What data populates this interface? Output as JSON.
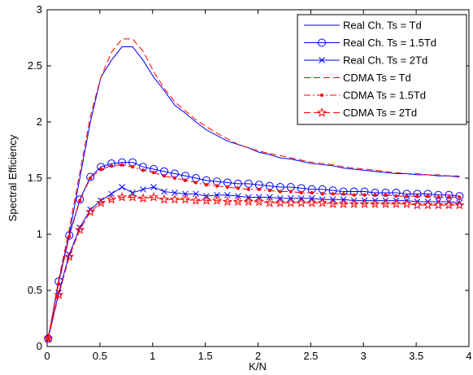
{
  "chart_data": {
    "type": "line",
    "title": "",
    "xlabel": "K/N",
    "ylabel": "Spectral Efficiency",
    "xlim": [
      0,
      4
    ],
    "ylim": [
      0,
      3
    ],
    "xticks": [
      0,
      0.5,
      1,
      1.5,
      2,
      2.5,
      3,
      3.5,
      4
    ],
    "yticks": [
      0,
      0.5,
      1,
      1.5,
      2,
      2.5,
      3
    ],
    "xtick_labels": [
      "0",
      "0.5",
      "1",
      "1.5",
      "2",
      "2.5",
      "3",
      "3.5",
      "4"
    ],
    "ytick_labels": [
      "0",
      "0.5",
      "1",
      "1.5",
      "2",
      "2.5",
      "3"
    ],
    "grid": false,
    "legend_position": "top-right",
    "x": [
      0.01,
      0.11,
      0.21,
      0.31,
      0.41,
      0.51,
      0.61,
      0.71,
      0.81,
      0.91,
      1.01,
      1.11,
      1.21,
      1.31,
      1.41,
      1.51,
      1.61,
      1.71,
      1.81,
      1.91,
      2.01,
      2.11,
      2.21,
      2.31,
      2.41,
      2.51,
      2.61,
      2.71,
      2.81,
      2.91,
      3.01,
      3.11,
      3.21,
      3.31,
      3.41,
      3.51,
      3.61,
      3.71,
      3.81,
      3.91
    ],
    "series": [
      {
        "name": "Real Ch. Ts = Td",
        "color": "#0000ff",
        "dash": "solid",
        "marker": "none",
        "values": [
          0.07,
          0.58,
          1.0,
          1.5,
          2.0,
          2.4,
          2.55,
          2.67,
          2.67,
          2.55,
          2.4,
          2.28,
          2.15,
          2.08,
          2.0,
          1.93,
          1.88,
          1.83,
          1.8,
          1.77,
          1.73,
          1.71,
          1.68,
          1.67,
          1.65,
          1.63,
          1.62,
          1.61,
          1.59,
          1.58,
          1.57,
          1.56,
          1.55,
          1.54,
          1.54,
          1.53,
          1.53,
          1.52,
          1.52,
          1.51
        ]
      },
      {
        "name": "Real Ch. Ts = 1.5Td",
        "color": "#0000ff",
        "dash": "solid",
        "marker": "circle",
        "values": [
          0.07,
          0.58,
          0.99,
          1.31,
          1.51,
          1.6,
          1.63,
          1.64,
          1.64,
          1.6,
          1.58,
          1.56,
          1.54,
          1.52,
          1.5,
          1.48,
          1.47,
          1.46,
          1.45,
          1.45,
          1.44,
          1.43,
          1.42,
          1.42,
          1.41,
          1.4,
          1.4,
          1.39,
          1.38,
          1.38,
          1.38,
          1.37,
          1.37,
          1.37,
          1.36,
          1.36,
          1.36,
          1.35,
          1.35,
          1.34
        ]
      },
      {
        "name": "Real Ch. Ts = 2Td",
        "color": "#0000ff",
        "dash": "solid",
        "marker": "x",
        "values": [
          0.07,
          0.48,
          0.82,
          1.06,
          1.22,
          1.3,
          1.36,
          1.42,
          1.37,
          1.4,
          1.42,
          1.38,
          1.37,
          1.36,
          1.36,
          1.34,
          1.35,
          1.35,
          1.34,
          1.33,
          1.33,
          1.33,
          1.32,
          1.32,
          1.32,
          1.32,
          1.31,
          1.31,
          1.31,
          1.3,
          1.3,
          1.3,
          1.3,
          1.3,
          1.3,
          1.29,
          1.29,
          1.29,
          1.29,
          1.28
        ]
      },
      {
        "name": "CDMA Ts = Td",
        "color": "#ff0000",
        "dash": "dashed",
        "marker": "none",
        "values": [
          0.07,
          0.6,
          1.05,
          1.55,
          2.05,
          2.4,
          2.62,
          2.74,
          2.74,
          2.63,
          2.45,
          2.3,
          2.18,
          2.1,
          2.02,
          1.96,
          1.9,
          1.85,
          1.8,
          1.77,
          1.74,
          1.72,
          1.7,
          1.68,
          1.66,
          1.64,
          1.63,
          1.62,
          1.6,
          1.59,
          1.58,
          1.57,
          1.56,
          1.55,
          1.54,
          1.54,
          1.53,
          1.53,
          1.52,
          1.52
        ]
      },
      {
        "name": "CDMA Ts = 1.5Td",
        "color": "#ff0000",
        "dash": "dashdot",
        "marker": "dot",
        "values": [
          0.07,
          0.56,
          0.98,
          1.3,
          1.5,
          1.58,
          1.61,
          1.62,
          1.6,
          1.57,
          1.55,
          1.52,
          1.5,
          1.48,
          1.46,
          1.44,
          1.43,
          1.42,
          1.41,
          1.4,
          1.4,
          1.39,
          1.38,
          1.38,
          1.37,
          1.37,
          1.36,
          1.36,
          1.36,
          1.35,
          1.35,
          1.35,
          1.35,
          1.34,
          1.34,
          1.34,
          1.34,
          1.33,
          1.33,
          1.33
        ]
      },
      {
        "name": "CDMA Ts = 2Td",
        "color": "#ff0000",
        "dash": "dashed",
        "marker": "star",
        "values": [
          0.07,
          0.46,
          0.8,
          1.04,
          1.2,
          1.28,
          1.31,
          1.33,
          1.33,
          1.32,
          1.33,
          1.31,
          1.31,
          1.31,
          1.3,
          1.3,
          1.3,
          1.29,
          1.29,
          1.29,
          1.29,
          1.28,
          1.28,
          1.28,
          1.28,
          1.28,
          1.28,
          1.27,
          1.27,
          1.27,
          1.27,
          1.27,
          1.27,
          1.27,
          1.27,
          1.26,
          1.26,
          1.26,
          1.26,
          1.26
        ]
      }
    ]
  }
}
